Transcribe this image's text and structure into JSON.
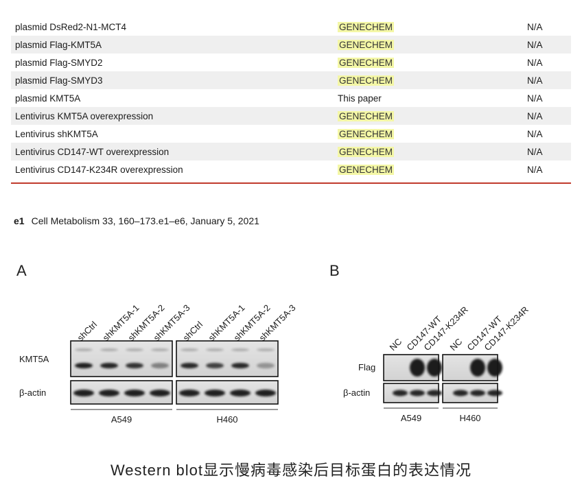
{
  "table": {
    "rows": [
      {
        "name": "plasmid DsRed2-N1-MCT4",
        "source": "GENECHEM",
        "identifier": "N/A",
        "highlight": true
      },
      {
        "name": "plasmid Flag-KMT5A",
        "source": "GENECHEM",
        "identifier": "N/A",
        "highlight": true
      },
      {
        "name": "plasmid Flag-SMYD2",
        "source": "GENECHEM",
        "identifier": "N/A",
        "highlight": true
      },
      {
        "name": "plasmid Flag-SMYD3",
        "source": "GENECHEM",
        "identifier": "N/A",
        "highlight": true
      },
      {
        "name": "plasmid KMT5A",
        "source": "This paper",
        "identifier": "N/A",
        "highlight": false
      },
      {
        "name": "Lentivirus KMT5A overexpression",
        "source": "GENECHEM",
        "identifier": "N/A",
        "highlight": true
      },
      {
        "name": "Lentivirus shKMT5A",
        "source": "GENECHEM",
        "identifier": "N/A",
        "highlight": true
      },
      {
        "name": "Lentivirus CD147-WT overexpression",
        "source": "GENECHEM",
        "identifier": "N/A",
        "highlight": true
      },
      {
        "name": "Lentivirus CD147-K234R overexpression",
        "source": "GENECHEM",
        "identifier": "N/A",
        "highlight": true
      }
    ]
  },
  "citation": {
    "page": "e1",
    "text": "Cell Metabolism 33, 160–173.e1–e6, January 5, 2021"
  },
  "figure": {
    "panel_a": {
      "letter": "A",
      "lanes": [
        "shCtrl",
        "shKMT5A-1",
        "shKMT5A-2",
        "shKMT5A-3",
        "shCtrl",
        "shKMT5A-1",
        "shKMT5A-2",
        "shKMT5A-3"
      ],
      "rows": [
        "KMT5A",
        "β-actin"
      ],
      "groups": [
        "A549",
        "H460"
      ]
    },
    "panel_b": {
      "letter": "B",
      "lanes": [
        "NC",
        "CD147-WT",
        "CD147-K234R",
        "NC",
        "CD147-WT",
        "CD147-K234R"
      ],
      "rows": [
        "Flag",
        "β-actin"
      ],
      "groups": [
        "A549",
        "H460"
      ]
    }
  },
  "caption": "Western blot显示慢病毒感染后目标蛋白的表达情况",
  "colors": {
    "highlight": "#f4f7a6",
    "rule": "#c0392b",
    "row_shade": "#efefef"
  }
}
